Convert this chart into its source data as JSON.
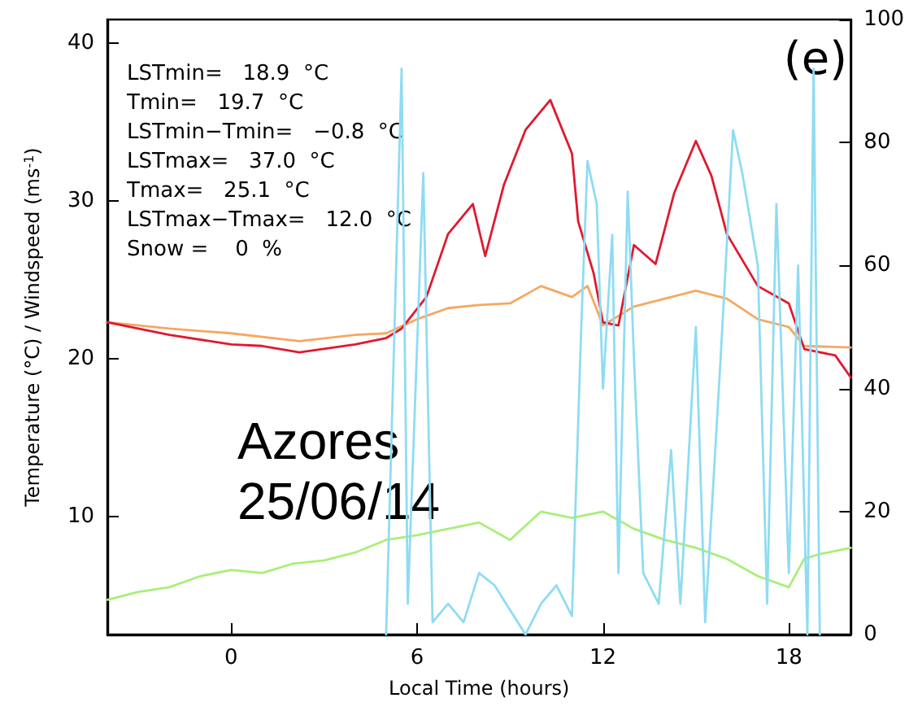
{
  "chart_data": {
    "type": "line",
    "xlabel": "Local Time (hours)",
    "ylabel": "Temperature (°C) / Windspeed (ms$^{-1}$)",
    "annotations": [
      "LSTmin=   18.9  °C",
      "Tmin=   19.7  °C",
      "LSTmin−Tmin=   −0.8  °C",
      "LSTmax=   37.0  °C",
      "Tmax=   25.1  °C",
      "LSTmax−Tmax=   12.0  °C",
      "Snow =    0  %",
      "(e)",
      "Azores",
      "25/06/14"
    ],
    "xlim": [
      -4,
      20
    ],
    "xticks": [
      0,
      6,
      12,
      18
    ],
    "ylim": [
      2.5,
      41.5
    ],
    "yticks": [
      10,
      20,
      30,
      40
    ],
    "y2lim": [
      0,
      100
    ],
    "y2ticks": [
      0,
      20,
      40,
      60,
      80,
      100
    ],
    "grid": false,
    "marker": "none",
    "line_style": "solid",
    "series": [
      {
        "color": "#a8ef78",
        "x": [
          -4,
          -3,
          -2,
          -1,
          0,
          1,
          2,
          3,
          4,
          5,
          6,
          7,
          8,
          9,
          10,
          11,
          12,
          13,
          14,
          15,
          16,
          17,
          18,
          18.5,
          19,
          20
        ],
        "values": [
          4.7,
          5.2,
          5.5,
          6.2,
          6.6,
          6.4,
          7.0,
          7.2,
          7.7,
          8.5,
          8.8,
          9.2,
          9.6,
          8.5,
          10.3,
          9.9,
          10.3,
          9.2,
          8.5,
          8.0,
          7.3,
          6.2,
          5.5,
          7.3,
          7.6,
          8.0
        ]
      },
      {
        "color": "#f5a862",
        "x": [
          -4,
          -2,
          0,
          2.2,
          4,
          5,
          6,
          7,
          8,
          9,
          10,
          11,
          11.5,
          12,
          13,
          14,
          15,
          16,
          17,
          18,
          18.5,
          20
        ],
        "values": [
          22.3,
          21.9,
          21.6,
          21.1,
          21.5,
          21.6,
          22.5,
          23.2,
          23.4,
          23.5,
          24.6,
          23.9,
          24.6,
          22.1,
          23.3,
          23.8,
          24.3,
          23.8,
          22.5,
          22.0,
          20.8,
          20.7
        ]
      },
      {
        "color": "#e0192e",
        "x": [
          -4,
          -2,
          0,
          1,
          2.2,
          4,
          5,
          5.5,
          6.3,
          7,
          7.8,
          8.2,
          8.8,
          9.5,
          10.3,
          11,
          11.2,
          11.7,
          12,
          12.5,
          13,
          13.7,
          14.3,
          15,
          15.5,
          16,
          17,
          18,
          18.5,
          19.5,
          20
        ],
        "values": [
          22.3,
          21.5,
          20.9,
          20.8,
          20.4,
          20.9,
          21.3,
          21.9,
          23.9,
          27.9,
          29.8,
          26.5,
          31.0,
          34.5,
          36.4,
          33.0,
          28.7,
          25.4,
          22.3,
          22.1,
          27.2,
          26.0,
          30.5,
          33.8,
          31.6,
          27.9,
          24.6,
          23.5,
          20.6,
          20.2,
          18.8
        ]
      },
      {
        "color": "#8fdcf2",
        "axis": "y2",
        "x": [
          5,
          5.5,
          5.7,
          6.2,
          6.5,
          7,
          7.5,
          8,
          8.5,
          9,
          9.5,
          10,
          10.5,
          11,
          11.3,
          11.5,
          11.8,
          12,
          12.3,
          12.5,
          12.8,
          13,
          13.3,
          13.8,
          14.2,
          14.5,
          15,
          15.3,
          15.8,
          16.2,
          16.5,
          17,
          17.3,
          17.6,
          18,
          18.3,
          18.6,
          18.8,
          19
        ],
        "values": [
          0,
          92,
          5,
          75,
          2,
          5,
          2,
          10,
          8,
          4,
          0,
          5,
          8,
          3,
          50,
          77,
          70,
          40,
          65,
          10,
          72,
          45,
          10,
          5,
          30,
          5,
          50,
          2,
          45,
          82,
          75,
          60,
          5,
          70,
          10,
          60,
          0,
          92,
          0
        ]
      }
    ]
  }
}
